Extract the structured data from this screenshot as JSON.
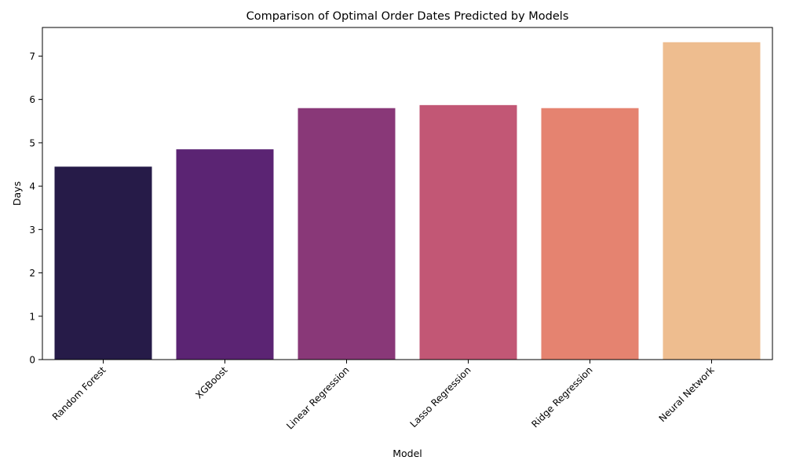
{
  "chart_data": {
    "type": "bar",
    "title": "Comparison of Optimal Order Dates Predicted by Models",
    "xlabel": "Model",
    "ylabel": "Days",
    "categories": [
      "Random Forest",
      "XGBoost",
      "Linear Regression",
      "Lasso Regression",
      "Ridge Regression",
      "Neural Network"
    ],
    "values": [
      4.45,
      4.85,
      5.8,
      5.87,
      5.8,
      7.32
    ],
    "colors": [
      "#261b48",
      "#5b2473",
      "#893878",
      "#c25775",
      "#e58370",
      "#eebd8f"
    ],
    "ylim": [
      0,
      7.66
    ],
    "yticks": [
      "0",
      "1",
      "2",
      "3",
      "4",
      "5",
      "6",
      "7"
    ],
    "grid": false,
    "legend": "none",
    "xtick_rotation": 45
  }
}
